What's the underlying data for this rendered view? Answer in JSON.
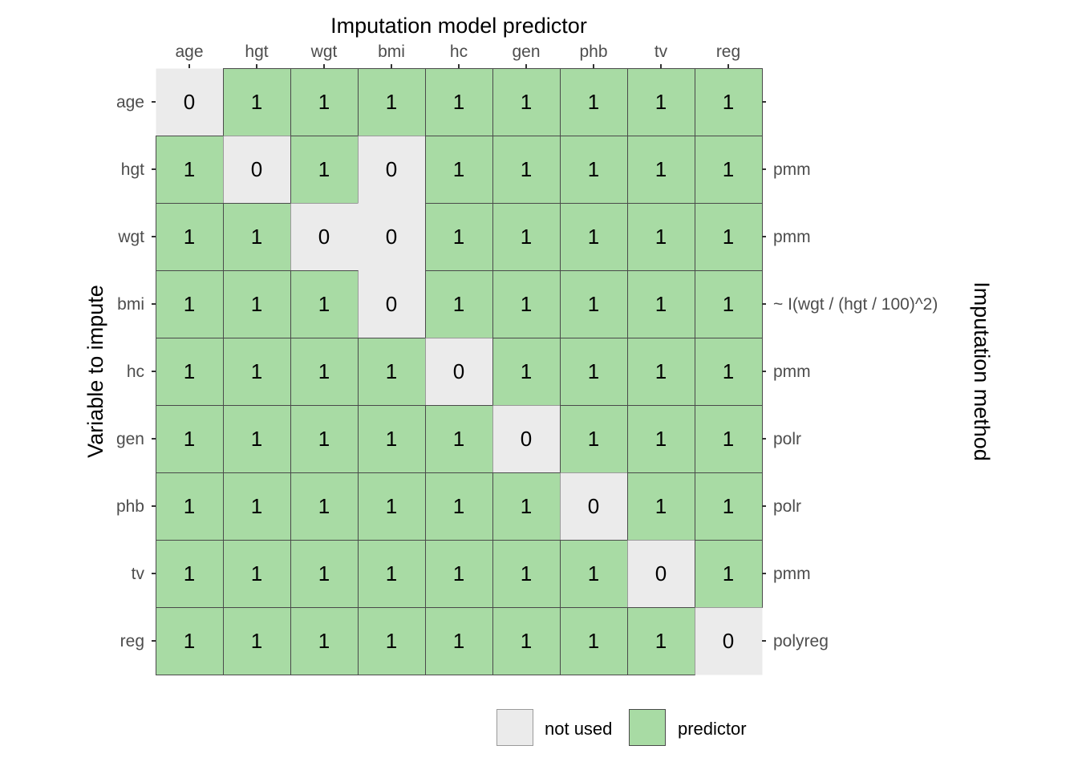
{
  "chart_data": {
    "type": "heatmap",
    "title": "",
    "xlabel": "Imputation model predictor",
    "ylabel": "Variable to impute",
    "secondary_ylabel": "Imputation method",
    "columns": [
      "age",
      "hgt",
      "wgt",
      "bmi",
      "hc",
      "gen",
      "phb",
      "tv",
      "reg"
    ],
    "rows": [
      "age",
      "hgt",
      "wgt",
      "bmi",
      "hc",
      "gen",
      "phb",
      "tv",
      "reg"
    ],
    "methods": [
      "",
      "pmm",
      "pmm",
      "~ I(wgt / (hgt / 100)^2)",
      "pmm",
      "polr",
      "polr",
      "pmm",
      "polyreg"
    ],
    "values": [
      [
        0,
        1,
        1,
        1,
        1,
        1,
        1,
        1,
        1
      ],
      [
        1,
        0,
        1,
        0,
        1,
        1,
        1,
        1,
        1
      ],
      [
        1,
        1,
        0,
        0,
        1,
        1,
        1,
        1,
        1
      ],
      [
        1,
        1,
        1,
        0,
        1,
        1,
        1,
        1,
        1
      ],
      [
        1,
        1,
        1,
        1,
        0,
        1,
        1,
        1,
        1
      ],
      [
        1,
        1,
        1,
        1,
        1,
        0,
        1,
        1,
        1
      ],
      [
        1,
        1,
        1,
        1,
        1,
        1,
        0,
        1,
        1
      ],
      [
        1,
        1,
        1,
        1,
        1,
        1,
        1,
        0,
        1
      ],
      [
        1,
        1,
        1,
        1,
        1,
        1,
        1,
        1,
        0
      ]
    ],
    "legend": {
      "position": "bottom-right",
      "entries": [
        {
          "value": 0,
          "label": "not used",
          "color": "#ebebeb"
        },
        {
          "value": 1,
          "label": "predictor",
          "color": "#a8dba4"
        }
      ]
    },
    "grid": false
  },
  "colors": {
    "not_used": "#ebebeb",
    "predictor": "#a8dba4",
    "cell_border": "#4a4a4a",
    "tick": "#333333"
  }
}
